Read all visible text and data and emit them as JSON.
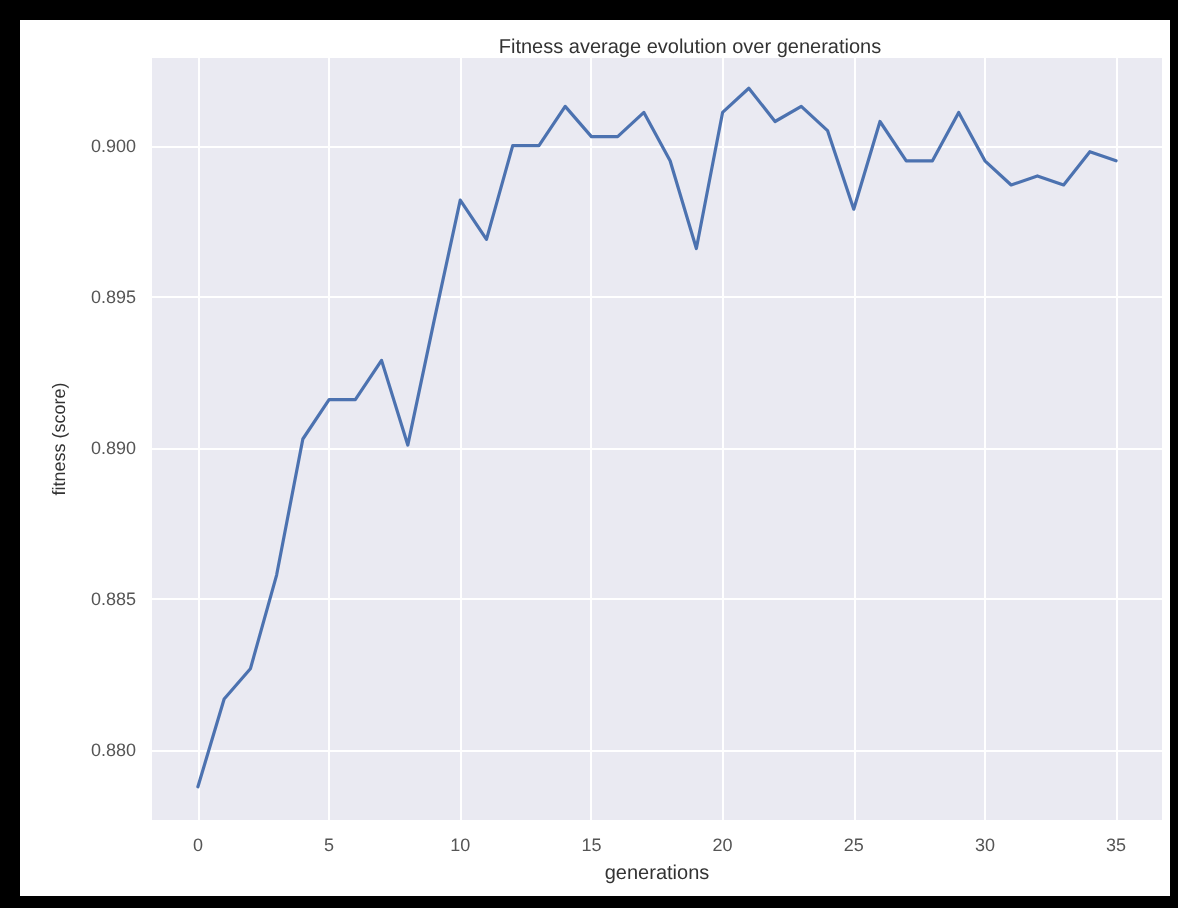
{
  "chart_data": {
    "type": "line",
    "title": "Fitness average evolution over generations",
    "xlabel": "generations",
    "ylabel": "fitness (score)",
    "x": [
      0,
      1,
      2,
      3,
      4,
      5,
      6,
      7,
      8,
      9,
      10,
      11,
      12,
      13,
      14,
      15,
      16,
      17,
      18,
      19,
      20,
      21,
      22,
      23,
      24,
      25,
      26,
      27,
      28,
      29,
      30,
      31,
      32,
      33,
      34,
      35
    ],
    "series": [
      {
        "color": "#4c72b0",
        "values": [
          0.8788,
          0.8817,
          0.8827,
          0.8858,
          0.8903,
          0.8916,
          0.8916,
          0.8929,
          0.8901,
          0.8942,
          0.8982,
          0.8969,
          0.9,
          0.9,
          0.9013,
          0.9003,
          0.9003,
          0.9011,
          0.8995,
          0.8966,
          0.9011,
          0.9019,
          0.9008,
          0.9013,
          0.9005,
          0.8979,
          0.9008,
          0.8995,
          0.8995,
          0.9011,
          0.8995,
          0.8987,
          0.899,
          0.8987,
          0.8998,
          0.8995
        ]
      }
    ],
    "xlim": [
      -1.75,
      36.75
    ],
    "xticks": [
      0,
      5,
      10,
      15,
      20,
      25,
      30,
      35
    ],
    "ylim": [
      0.8777,
      0.9029
    ],
    "yticks": [
      {
        "value": 0.88,
        "label": "0.880"
      },
      {
        "value": 0.885,
        "label": "0.885"
      },
      {
        "value": 0.89,
        "label": "0.890"
      },
      {
        "value": 0.895,
        "label": "0.895"
      },
      {
        "value": 0.9,
        "label": "0.900"
      }
    ],
    "grid": true,
    "marker": "none",
    "line_style": "solid"
  }
}
